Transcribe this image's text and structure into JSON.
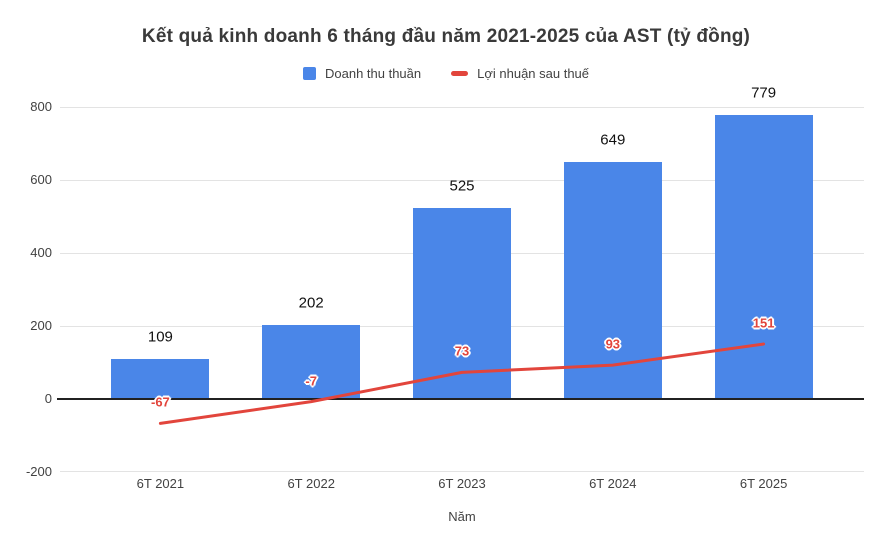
{
  "colors": {
    "bar": "#4a86e8",
    "line": "#e2453c",
    "grid": "#e3e3e3",
    "zero_axis": "#212121",
    "title_text": "#3a3a3a",
    "axis_text": "#424242",
    "bar_label_text": "#111111"
  },
  "chart_data": {
    "type": "bar",
    "title": "Kết quả kinh doanh 6 tháng đầu năm 2021-2025 của AST (tỷ đồng)",
    "categories": [
      "6T 2021",
      "6T 2022",
      "6T 2023",
      "6T 2024",
      "6T 2025"
    ],
    "series": [
      {
        "name": "Doanh thu thuần",
        "type": "bar",
        "color": "#4a86e8",
        "values": [
          109,
          202,
          525,
          649,
          779
        ]
      },
      {
        "name": "Lợi nhuận sau thuế",
        "type": "line",
        "color": "#e2453c",
        "values": [
          -67,
          -7,
          73,
          93,
          151
        ]
      }
    ],
    "xlabel": "Năm",
    "ylabel": "",
    "ylim": [
      -200,
      800
    ],
    "yticks": [
      800,
      600,
      400,
      200,
      0,
      -200
    ],
    "grid": true,
    "legend_position": "top"
  }
}
